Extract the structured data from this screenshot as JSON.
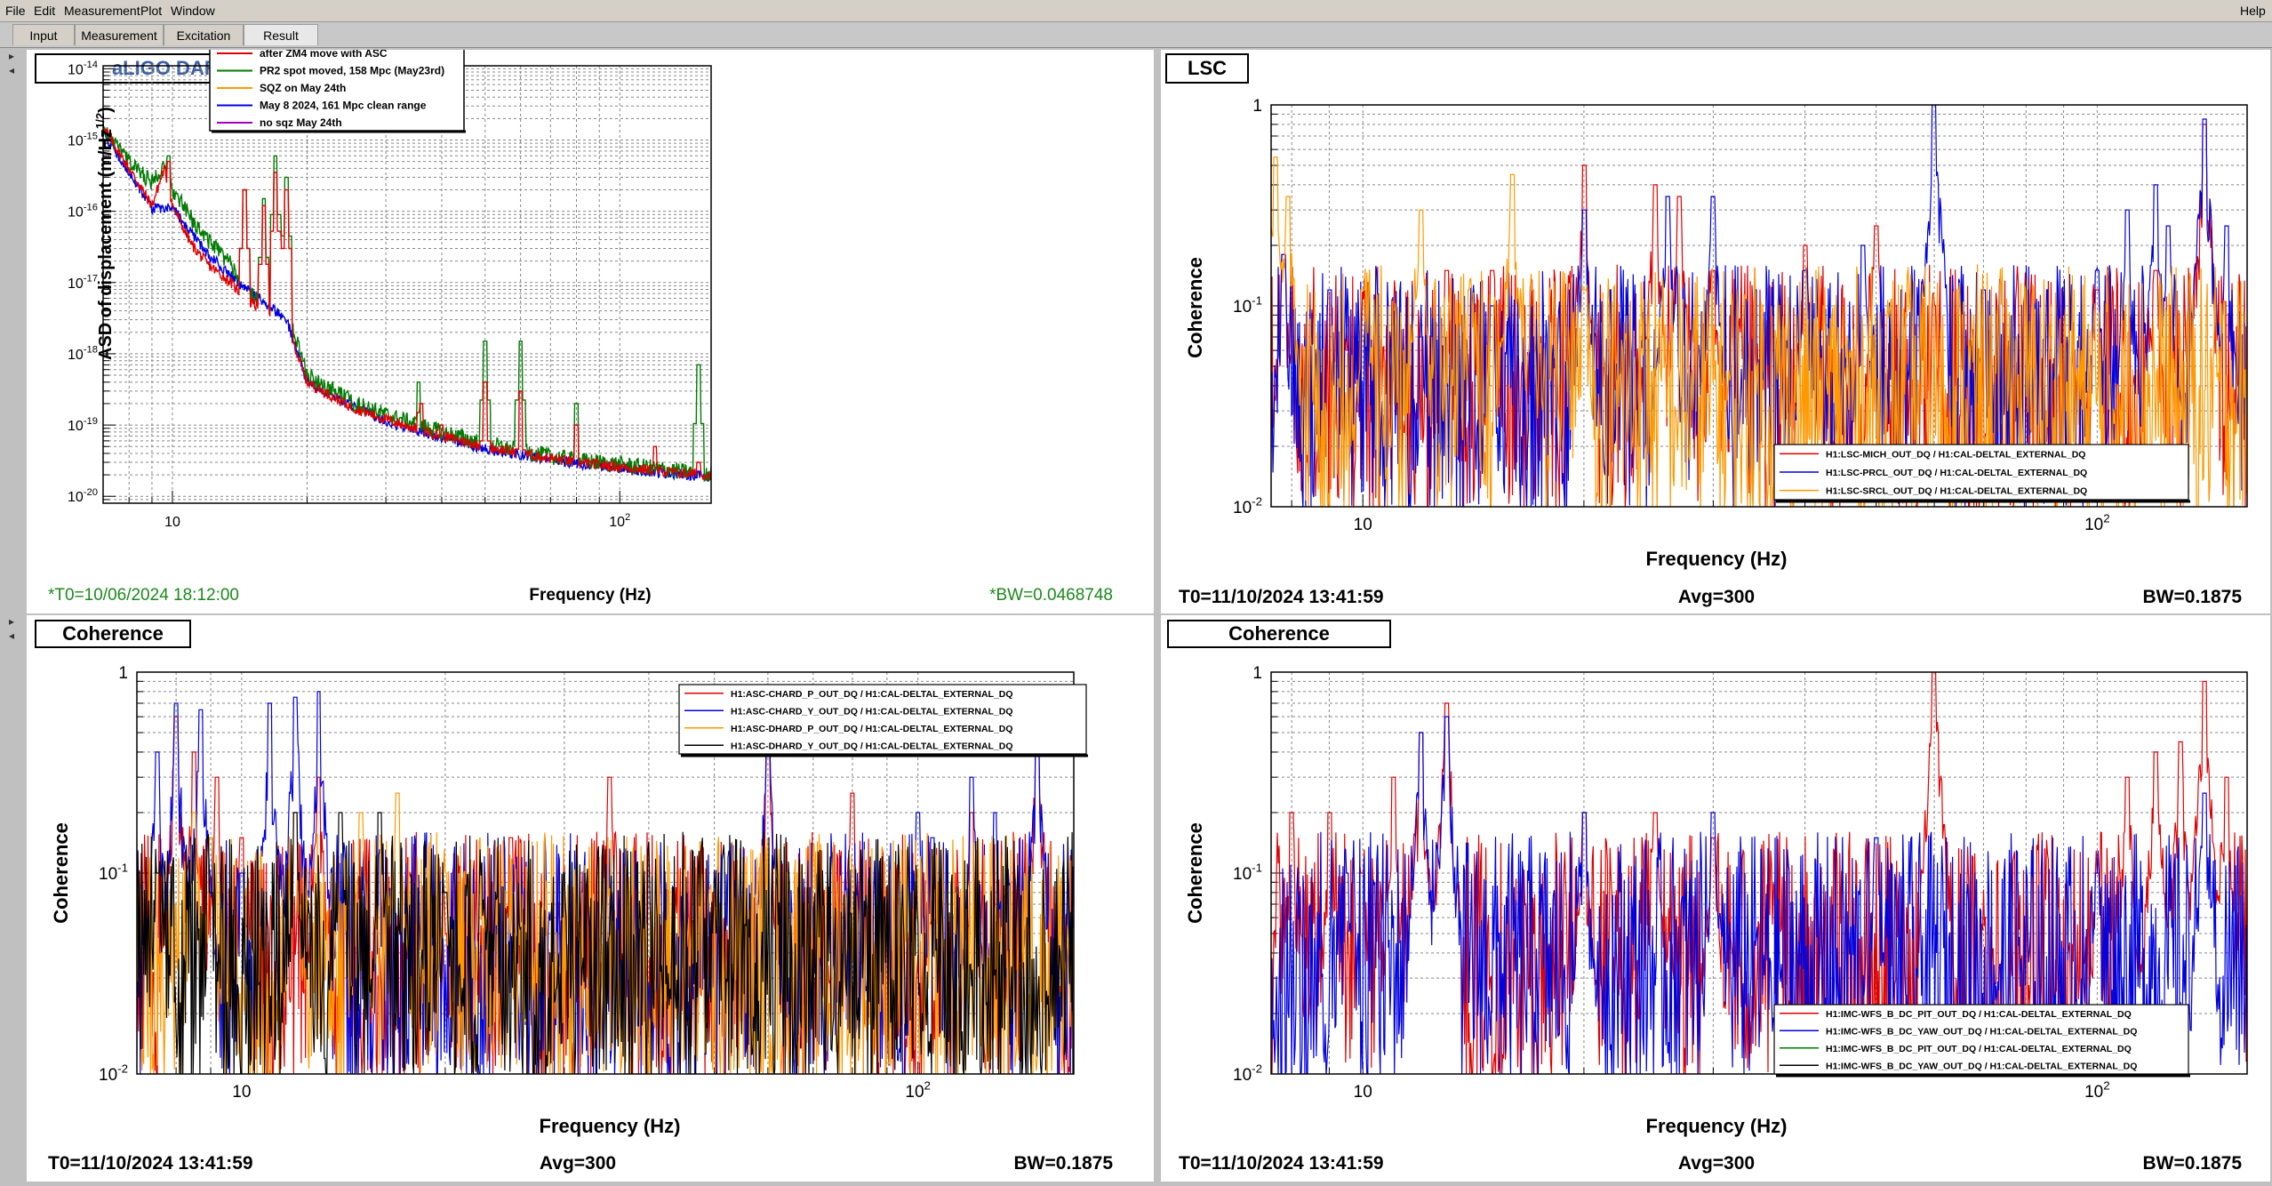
{
  "menu": {
    "file": "File",
    "edit": "Edit",
    "measurement": "Measurement",
    "plot": "Plot",
    "window": "Window",
    "help": "Help"
  },
  "tabs": [
    "Input",
    "Measurement",
    "Excitation",
    "Result"
  ],
  "active_tab": "Result",
  "panels": {
    "tl": {
      "title": "aLIGO DARM",
      "footer_left": "*T0=10/06/2024 18:12:00",
      "footer_right": "*BW=0.0468748",
      "xlabel": "Frequency (Hz)",
      "ylabel": "ASD of displacement (m/Hz1/2)"
    },
    "tr": {
      "title": "LSC",
      "footer_left": "T0=11/10/2024 13:41:59",
      "footer_mid": "Avg=300",
      "footer_right": "BW=0.1875",
      "xlabel": "Frequency (Hz)",
      "ylabel": "Coherence"
    },
    "bl": {
      "title": "Coherence",
      "footer_left": "T0=11/10/2024 13:41:59",
      "footer_mid": "Avg=300",
      "footer_right": "BW=0.1875",
      "xlabel": "Frequency (Hz)",
      "ylabel": "Coherence"
    },
    "br": {
      "title": "Coherence",
      "footer_left": "T0=11/10/2024 13:41:59",
      "footer_mid": "Avg=300",
      "footer_right": "BW=0.1875",
      "xlabel": "Frequency (Hz)",
      "ylabel": "Coherence"
    }
  },
  "colors": {
    "red": "#e00000",
    "green": "#007a00",
    "orange": "#ff9900",
    "blue": "#0000e0",
    "purple": "#a000c0",
    "black": "#000000"
  },
  "chart_data": [
    {
      "type": "line",
      "title": "aLIGO DARM",
      "xlabel": "Frequency (Hz)",
      "ylabel": "ASD of displacement (m/Hz1/2)",
      "xscale": "log",
      "yscale": "log",
      "xlim": [
        7,
        160
      ],
      "ylim": [
        8e-21,
        1.1e-14
      ],
      "x_ticks": [
        "10",
        "10^2"
      ],
      "y_ticks": [
        "10^-14",
        "10^-15",
        "10^-16",
        "10^-17",
        "10^-18",
        "10^-19",
        "10^-20"
      ],
      "grid": true,
      "legend_position": "top-center",
      "series": [
        {
          "name": "after ZM4 move with ASC",
          "color": "red",
          "x": [
            7,
            8,
            9,
            9.6,
            10,
            11,
            12,
            13.5,
            14.5,
            16,
            18,
            19,
            20,
            25,
            30,
            40,
            50,
            60,
            80,
            100,
            120,
            140,
            160
          ],
          "y": [
            1.5e-15,
            4e-16,
            1.2e-16,
            4e-16,
            1.2e-16,
            3.5e-17,
            1.8e-17,
            1e-17,
            6e-18,
            4e-18,
            3e-18,
            1e-18,
            4e-19,
            1.8e-19,
            1.2e-19,
            7e-20,
            5e-20,
            4e-20,
            3e-20,
            2.6e-20,
            2.3e-20,
            2.1e-20,
            2e-20
          ],
          "peaks": [
            [
              9.8,
              5e-16
            ],
            [
              14.5,
              2e-16
            ],
            [
              16,
              1.2e-16
            ],
            [
              17,
              3.5e-16
            ],
            [
              18,
              2e-16
            ],
            [
              35.5,
              1.5e-19
            ],
            [
              36,
              2e-19
            ],
            [
              40,
              1e-19
            ],
            [
              50,
              4e-19
            ],
            [
              60,
              3e-19
            ],
            [
              80,
              1e-19
            ],
            [
              120,
              5e-20
            ],
            [
              150,
              3e-20
            ]
          ]
        },
        {
          "name": "PR2 spot moved, 158 Mpc (May23rd)",
          "color": "green",
          "x": [
            7,
            8,
            9,
            9.6,
            10,
            11,
            12,
            13.5,
            14.5,
            16,
            18,
            19,
            20,
            25,
            30,
            40,
            50,
            60,
            80,
            100,
            120,
            140,
            160
          ],
          "y": [
            1.4e-15,
            5e-16,
            2.5e-16,
            5e-16,
            2e-16,
            8e-17,
            4e-17,
            1.8e-17,
            8e-18,
            5e-18,
            4e-18,
            1.5e-18,
            5e-19,
            2.2e-19,
            1.4e-19,
            8e-20,
            5.5e-20,
            4.3e-20,
            3.2e-20,
            2.8e-20,
            2.5e-20,
            2.2e-20,
            2.1e-20
          ],
          "peaks": [
            [
              9.8,
              6e-16
            ],
            [
              14.5,
              2e-16
            ],
            [
              16,
              1.5e-16
            ],
            [
              17,
              6e-16
            ],
            [
              18,
              3e-16
            ],
            [
              35.5,
              4e-19
            ],
            [
              50,
              1.5e-18
            ],
            [
              60,
              1.5e-18
            ],
            [
              80,
              2e-19
            ],
            [
              150,
              7e-19
            ]
          ]
        },
        {
          "name": "SQZ on May 24th",
          "color": "orange",
          "x": [],
          "y": []
        },
        {
          "name": "May 8 2024, 161 Mpc clean range",
          "color": "blue",
          "x": [
            7,
            9,
            10,
            12,
            14,
            18,
            20,
            30,
            50,
            80,
            120,
            160
          ],
          "y": [
            1.3e-15,
            1.1e-16,
            1.1e-16,
            2.5e-17,
            1e-17,
            3e-18,
            4e-19,
            1.1e-19,
            4.6e-20,
            2.9e-20,
            2.2e-20,
            1.9e-20
          ],
          "peaks": []
        },
        {
          "name": "no sqz May 24th",
          "color": "purple",
          "x": [],
          "y": []
        }
      ]
    },
    {
      "type": "line",
      "title": "LSC",
      "xlabel": "Frequency (Hz)",
      "ylabel": "Coherence",
      "xscale": "log",
      "yscale": "log",
      "xlim": [
        7.5,
        160
      ],
      "ylim": [
        0.01,
        1
      ],
      "x_ticks": [
        "10",
        "10^2"
      ],
      "y_ticks": [
        "1",
        "10^-1",
        "10^-2"
      ],
      "grid": true,
      "legend_position": "bottom-right",
      "series": [
        {
          "name": "H1:LSC-MICH_OUT_DQ / H1:CAL-DELTAL_EXTERNAL_DQ",
          "color": "red",
          "peaks": [
            [
              7.8,
              0.18
            ],
            [
              8,
              0.05
            ],
            [
              9.5,
              0.06
            ],
            [
              13,
              0.15
            ],
            [
              15,
              0.15
            ],
            [
              20,
              0.5
            ],
            [
              25,
              0.4
            ],
            [
              27,
              0.35
            ],
            [
              30,
              0.15
            ],
            [
              40,
              0.2
            ],
            [
              50,
              0.25
            ],
            [
              60,
              0.1
            ],
            [
              100,
              0.12
            ],
            [
              120,
              0.15
            ],
            [
              140,
              0.8
            ]
          ]
        },
        {
          "name": "H1:LSC-PRCL_OUT_DQ / H1:CAL-DELTAL_EXTERNAL_DQ",
          "color": "blue",
          "peaks": [
            [
              7.8,
              0.18
            ],
            [
              9,
              0.12
            ],
            [
              12,
              0.07
            ],
            [
              15,
              0.1
            ],
            [
              20,
              0.3
            ],
            [
              26,
              0.35
            ],
            [
              30,
              0.35
            ],
            [
              40,
              0.15
            ],
            [
              48,
              0.2
            ],
            [
              60,
              1
            ],
            [
              70,
              0.12
            ],
            [
              100,
              0.15
            ],
            [
              110,
              0.3
            ],
            [
              120,
              0.4
            ],
            [
              125,
              0.25
            ],
            [
              140,
              0.85
            ],
            [
              150,
              0.25
            ]
          ]
        },
        {
          "name": "H1:LSC-SRCL_OUT_DQ / H1:CAL-DELTAL_EXTERNAL_DQ",
          "color": "orange",
          "peaks": [
            [
              7.6,
              0.55
            ],
            [
              7.9,
              0.35
            ],
            [
              10,
              0.12
            ],
            [
              12,
              0.3
            ],
            [
              14,
              0.12
            ],
            [
              16,
              0.45
            ],
            [
              17,
              0.12
            ],
            [
              20,
              0.12
            ]
          ]
        }
      ]
    },
    {
      "type": "line",
      "title": "Coherence",
      "xlabel": "Frequency (Hz)",
      "ylabel": "Coherence",
      "xscale": "log",
      "yscale": "log",
      "xlim": [
        7,
        170
      ],
      "ylim": [
        0.01,
        1
      ],
      "x_ticks": [
        "10",
        "10^2"
      ],
      "y_ticks": [
        "1",
        "10^-1",
        "10^-2"
      ],
      "grid": true,
      "legend_position": "top-right",
      "series": [
        {
          "name": "H1:ASC-CHARD_P_OUT_DQ / H1:CAL-DELTAL_EXTERNAL_DQ",
          "color": "red",
          "peaks": [
            [
              8,
              0.6
            ],
            [
              8.5,
              0.4
            ],
            [
              9.2,
              0.3
            ],
            [
              10,
              0.15
            ],
            [
              13,
              0.3
            ],
            [
              20,
              0.05
            ],
            [
              25,
              0.15
            ],
            [
              35,
              0.3
            ],
            [
              60,
              0.4
            ],
            [
              80,
              0.25
            ],
            [
              120,
              0.2
            ],
            [
              150,
              0.5
            ]
          ]
        },
        {
          "name": "H1:ASC-CHARD_Y_OUT_DQ / H1:CAL-DELTAL_EXTERNAL_DQ",
          "color": "blue",
          "peaks": [
            [
              7.5,
              0.4
            ],
            [
              8,
              0.7
            ],
            [
              8.7,
              0.65
            ],
            [
              10,
              0.1
            ],
            [
              11,
              0.7
            ],
            [
              12,
              0.75
            ],
            [
              13,
              0.8
            ],
            [
              60,
              0.5
            ],
            [
              100,
              0.2
            ],
            [
              105,
              0.15
            ],
            [
              120,
              0.3
            ],
            [
              130,
              0.2
            ],
            [
              150,
              0.5
            ]
          ]
        },
        {
          "name": "H1:ASC-DHARD_P_OUT_DQ / H1:CAL-DELTAL_EXTERNAL_DQ",
          "color": "orange",
          "peaks": [
            [
              8.5,
              0.2
            ],
            [
              9,
              0.15
            ],
            [
              12,
              0.2
            ],
            [
              15,
              0.2
            ],
            [
              17,
              0.25
            ],
            [
              20,
              0.1
            ],
            [
              25,
              0.05
            ]
          ]
        },
        {
          "name": "H1:ASC-DHARD_Y_OUT_DQ / H1:CAL-DELTAL_EXTERNAL_DQ",
          "color": "black",
          "peaks": [
            [
              7.5,
              0.1
            ],
            [
              9,
              0.08
            ],
            [
              12,
              0.2
            ],
            [
              14,
              0.2
            ],
            [
              16,
              0.2
            ],
            [
              20,
              0.08
            ],
            [
              30,
              0.06
            ],
            [
              50,
              0.05
            ]
          ]
        }
      ]
    },
    {
      "type": "line",
      "title": "Coherence",
      "xlabel": "Frequency (Hz)",
      "ylabel": "Coherence",
      "xscale": "log",
      "yscale": "log",
      "xlim": [
        7.5,
        160
      ],
      "ylim": [
        0.01,
        1
      ],
      "x_ticks": [
        "10",
        "10^2"
      ],
      "y_ticks": [
        "1",
        "10^-1",
        "10^-2"
      ],
      "grid": true,
      "legend_position": "bottom-right",
      "series": [
        {
          "name": "H1:IMC-WFS_B_DC_PIT_OUT_DQ / H1:CAL-DELTAL_EXTERNAL_DQ",
          "color": "red",
          "peaks": [
            [
              8,
              0.2
            ],
            [
              9,
              0.2
            ],
            [
              10,
              0.1
            ],
            [
              11,
              0.3
            ],
            [
              12,
              0.5
            ],
            [
              13,
              0.7
            ],
            [
              20,
              0.2
            ],
            [
              25,
              0.2
            ],
            [
              30,
              0.15
            ],
            [
              60,
              1
            ],
            [
              100,
              0.1
            ],
            [
              110,
              0.3
            ],
            [
              120,
              0.4
            ],
            [
              130,
              0.45
            ],
            [
              140,
              0.9
            ],
            [
              150,
              0.3
            ]
          ]
        },
        {
          "name": "H1:IMC-WFS_B_DC_YAW_OUT_DQ / H1:CAL-DELTAL_EXTERNAL_DQ",
          "color": "blue",
          "peaks": [
            [
              9.5,
              0.1
            ],
            [
              12,
              0.5
            ],
            [
              13,
              0.6
            ],
            [
              20,
              0.2
            ],
            [
              30,
              0.2
            ],
            [
              50,
              0.15
            ],
            [
              100,
              0.1
            ],
            [
              140,
              0.25
            ]
          ]
        },
        {
          "name": "H1:IMC-WFS_B_DC_PIT_OUT_DQ / H1:CAL-DELTAL_EXTERNAL_DQ",
          "color": "green",
          "peaks": []
        },
        {
          "name": "H1:IMC-WFS_B_DC_YAW_OUT_DQ / H1:CAL-DELTAL_EXTERNAL_DQ",
          "color": "black",
          "peaks": []
        }
      ]
    }
  ]
}
